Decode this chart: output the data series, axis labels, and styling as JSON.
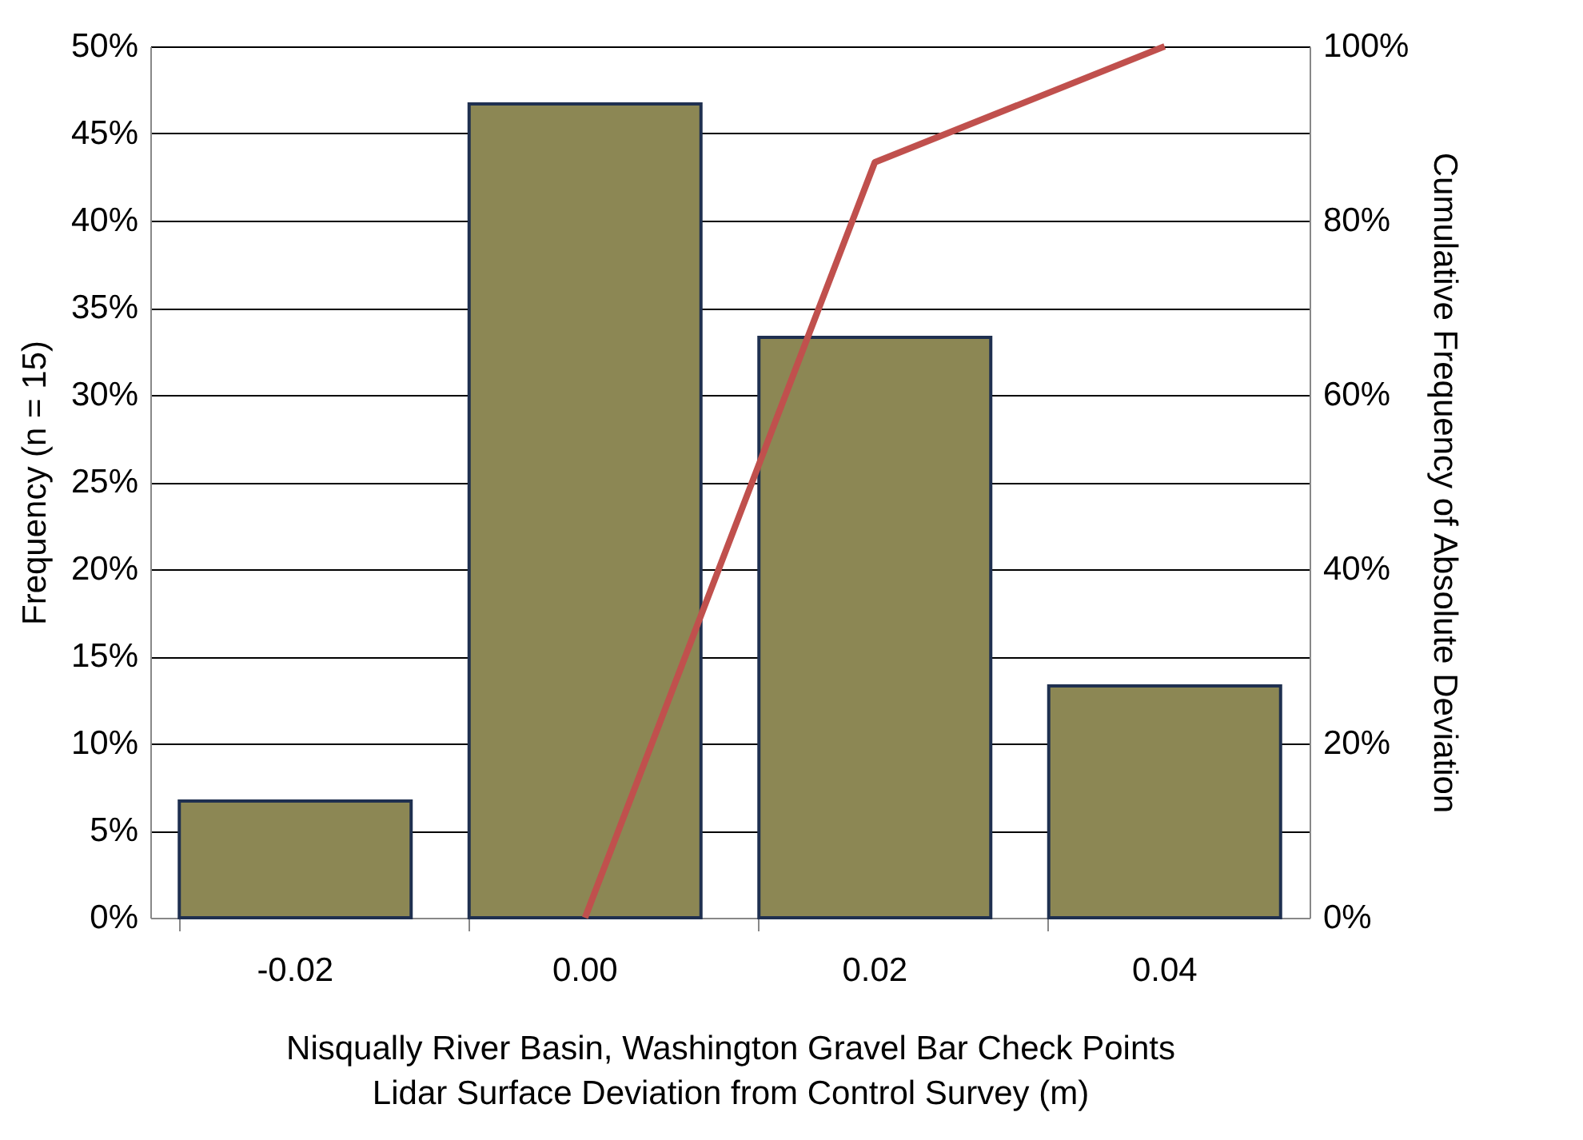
{
  "chart_data": {
    "type": "bar",
    "xlabel": "Nisqually River Basin, Washington Gravel Bar Check Points\nLidar Surface Deviation from Control Survey (m)",
    "ylabel": "Frequency (n = 15)",
    "y2label": "Cumulative Frequency of Absolute Deviation",
    "categories": [
      "-0.02",
      "0.00",
      "0.02",
      "0.04"
    ],
    "series": [
      {
        "color": "#8c8754",
        "values": [
          6.7,
          46.7,
          33.3,
          13.3
        ]
      },
      {
        "type": "line",
        "axis": "y2",
        "color": "#c0504d",
        "values": [
          null,
          0,
          86.7,
          100
        ]
      }
    ],
    "ylim": [
      0,
      50
    ],
    "yticks": [
      {
        "value": 0,
        "label": "0%"
      },
      {
        "value": 5,
        "label": "5%"
      },
      {
        "value": 10,
        "label": "10%"
      },
      {
        "value": 15,
        "label": "15%"
      },
      {
        "value": 20,
        "label": "20%"
      },
      {
        "value": 25,
        "label": "25%"
      },
      {
        "value": 30,
        "label": "30%"
      },
      {
        "value": 35,
        "label": "35%"
      },
      {
        "value": 40,
        "label": "40%"
      },
      {
        "value": 45,
        "label": "45%"
      },
      {
        "value": 50,
        "label": "50%"
      }
    ],
    "y2lim": [
      0,
      100
    ],
    "y2ticks": [
      {
        "value": 0,
        "label": "0%"
      },
      {
        "value": 20,
        "label": "20%"
      },
      {
        "value": 40,
        "label": "40%"
      },
      {
        "value": 60,
        "label": "60%"
      },
      {
        "value": 80,
        "label": "80%"
      },
      {
        "value": 100,
        "label": "100%"
      }
    ],
    "grid": "y"
  }
}
